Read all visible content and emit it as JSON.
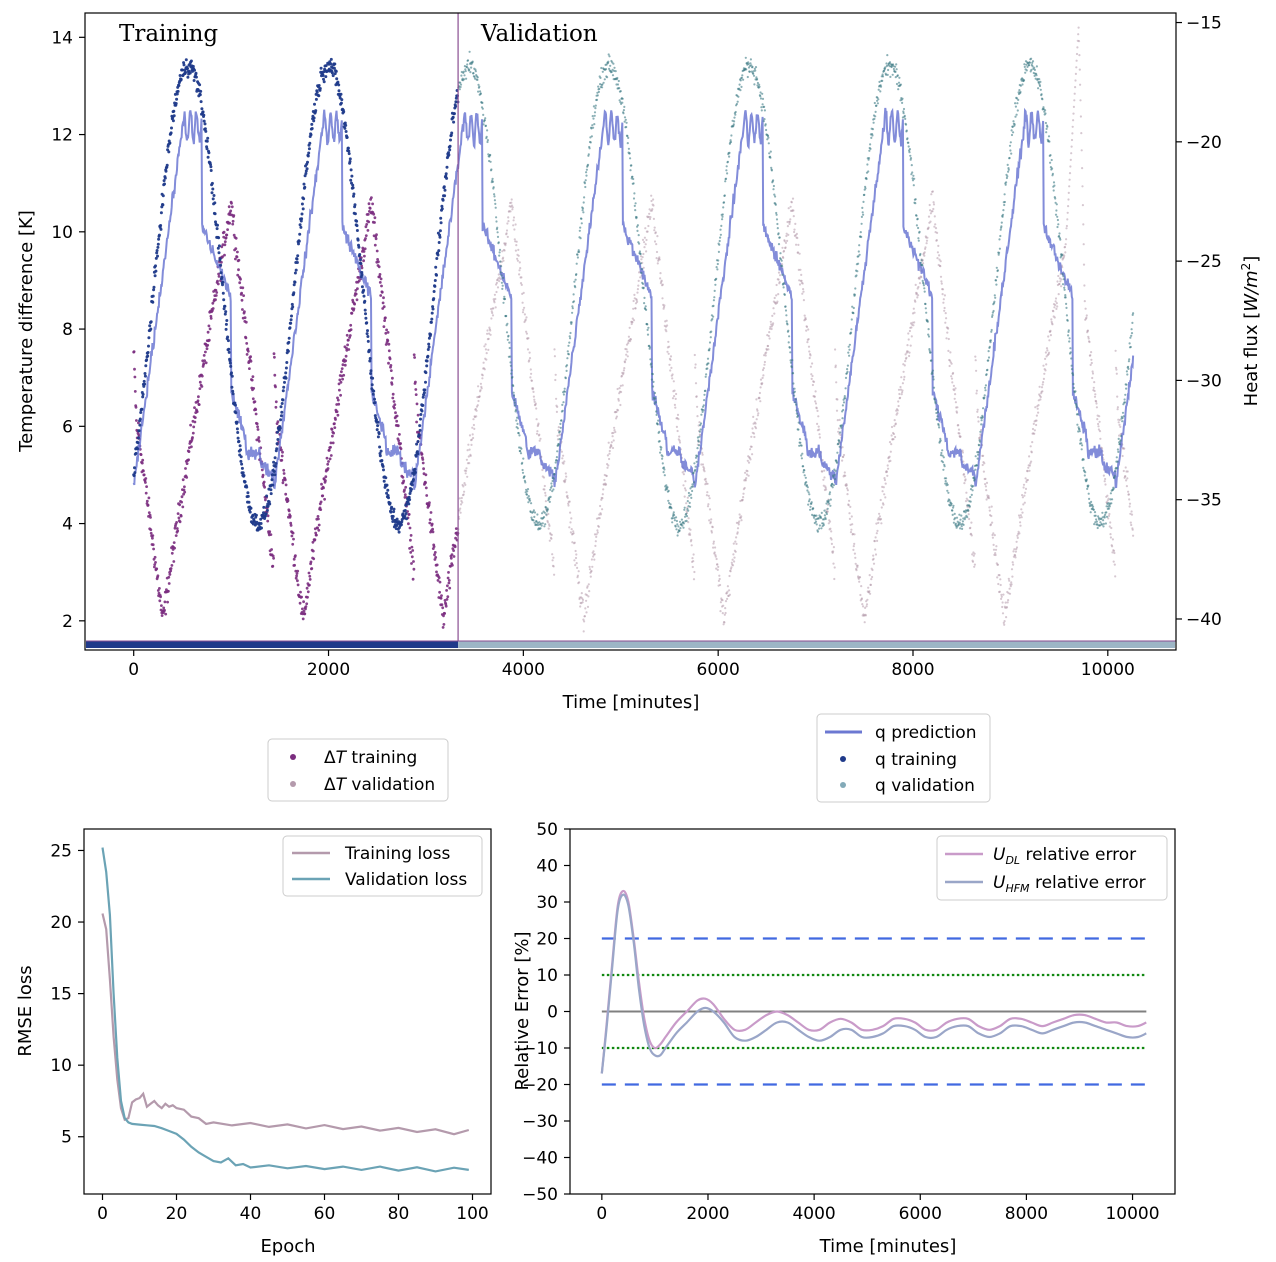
{
  "chart_data": [
    {
      "type": "scatter",
      "id": "top",
      "xlabel": "Time [minutes]",
      "ylabel": "Temperature difference [K]",
      "ylabel_right": "Heat flux [",
      "ylabel_right_unit": "W/m",
      "ylabel_right_sup": "2",
      "ylabel_right_close": "]",
      "xlim": [
        -500,
        10700
      ],
      "ylim": [
        1.4,
        14.5
      ],
      "ylim_right": [
        -41.3,
        -14.6
      ],
      "xticks": [
        0,
        2000,
        4000,
        6000,
        8000,
        10000
      ],
      "xtick_labels": [
        "0",
        "2000",
        "4000",
        "6000",
        "8000",
        "10000"
      ],
      "yticks": [
        2,
        4,
        6,
        8,
        10,
        12,
        14
      ],
      "ytick_labels": [
        "2",
        "4",
        "6",
        "8",
        "10",
        "12",
        "14"
      ],
      "yticks_right": [
        -40,
        -35,
        -30,
        -25,
        -20,
        -15
      ],
      "ytick_labels_right": [
        "−40",
        "−35",
        "−30",
        "−25",
        "−20",
        "−15"
      ],
      "split_x": 3330,
      "region_labels": [
        "Training",
        "Validation"
      ],
      "temperature_series": {
        "period": 1440,
        "phase_of_peak": 1000,
        "min": 2.0,
        "max": 10.6,
        "start": 0,
        "end": 10260,
        "late_peak": {
          "x": 9700,
          "y": 14.2
        }
      },
      "heat_flux_series": {
        "period": 1440,
        "peak_x": 560,
        "min": -36.0,
        "max": -16.8,
        "start": 0,
        "end": 10260
      },
      "prediction_series": {
        "high": -19.4,
        "low": -34.5,
        "drop_at_phase": 700
      },
      "legend1": {
        "entries": [
          {
            "label": "Δ",
            "italic": "T",
            "rest": " training",
            "color": "#7b2d7f"
          },
          {
            "label": "Δ",
            "italic": "T",
            "rest": " validation",
            "color": "#b49aac"
          }
        ]
      },
      "legend2": {
        "entries": [
          {
            "label": "q prediction",
            "color": "#6c78d2",
            "marker": "line"
          },
          {
            "label": "q training",
            "color": "#1f3a8a",
            "marker": "dot"
          },
          {
            "label": "q validation",
            "color": "#83aab8",
            "marker": "dot"
          }
        ]
      },
      "colors": {
        "dt_train": "#7b2d7f",
        "dt_val": "#b49aac",
        "q_pred": "#6c78d2",
        "q_train": "#1f3a8a",
        "q_val": "#3d7b85",
        "bar_train": "#1f3a8a",
        "bar_val": "#9db6c6",
        "split_line": "#8a4d91"
      }
    },
    {
      "type": "line",
      "id": "loss",
      "xlabel": "Epoch",
      "ylabel": "RMSE loss",
      "xlim": [
        -5,
        105
      ],
      "ylim": [
        1.0,
        26.5
      ],
      "xticks": [
        0,
        20,
        40,
        60,
        80,
        100
      ],
      "xtick_labels": [
        "0",
        "20",
        "40",
        "60",
        "80",
        "100"
      ],
      "yticks": [
        5,
        10,
        15,
        20,
        25
      ],
      "ytick_labels": [
        "5",
        "10",
        "15",
        "20",
        "25"
      ],
      "series": [
        {
          "name": "Training loss",
          "color": "#b49aac",
          "x": [
            0,
            1,
            2,
            3,
            4,
            5,
            6,
            7,
            8,
            9,
            10,
            11,
            12,
            13,
            14,
            15,
            16,
            17,
            18,
            19,
            20,
            22,
            24,
            26,
            28,
            30,
            35,
            40,
            45,
            50,
            55,
            60,
            65,
            70,
            75,
            80,
            85,
            90,
            95,
            99
          ],
          "values": [
            20.6,
            19.5,
            16.0,
            12.0,
            9.0,
            7.0,
            6.2,
            6.3,
            7.4,
            7.6,
            7.7,
            8.0,
            7.1,
            7.3,
            7.5,
            7.2,
            7.0,
            7.3,
            7.1,
            7.2,
            7.0,
            6.8,
            6.5,
            6.2,
            6.0,
            5.9,
            5.9,
            5.85,
            5.8,
            5.75,
            5.7,
            5.7,
            5.65,
            5.6,
            5.55,
            5.5,
            5.45,
            5.4,
            5.3,
            5.35
          ]
        },
        {
          "name": "Validation loss",
          "color": "#6ba3b5",
          "x": [
            0,
            1,
            2,
            3,
            4,
            5,
            6,
            7,
            8,
            10,
            12,
            14,
            16,
            18,
            20,
            22,
            24,
            26,
            28,
            30,
            32,
            34,
            36,
            38,
            40,
            45,
            50,
            55,
            60,
            65,
            70,
            75,
            80,
            85,
            90,
            95,
            99
          ],
          "values": [
            25.2,
            23.5,
            20.5,
            15.0,
            10.5,
            7.5,
            6.3,
            6.0,
            5.9,
            5.85,
            5.8,
            5.75,
            5.6,
            5.4,
            5.2,
            4.8,
            4.3,
            3.9,
            3.6,
            3.3,
            3.2,
            3.4,
            3.1,
            3.0,
            2.95,
            2.9,
            2.9,
            2.85,
            2.85,
            2.8,
            2.8,
            2.8,
            2.75,
            2.75,
            2.7,
            2.72,
            2.8
          ]
        }
      ]
    },
    {
      "type": "line",
      "id": "relerr",
      "xlabel": "Time [minutes]",
      "ylabel": "Relative Error [%]",
      "xlim": [
        -600,
        10800
      ],
      "ylim": [
        -50,
        50
      ],
      "xticks": [
        0,
        2000,
        4000,
        6000,
        8000,
        10000
      ],
      "xtick_labels": [
        "0",
        "2000",
        "4000",
        "6000",
        "8000",
        "10000"
      ],
      "yticks": [
        -50,
        -40,
        -30,
        -20,
        -10,
        0,
        10,
        20,
        30,
        40,
        50
      ],
      "ytick_labels": [
        "−50",
        "−40",
        "−30",
        "−20",
        "−10",
        "0",
        "10",
        "20",
        "30",
        "40",
        "50"
      ],
      "reference_lines": [
        {
          "y": 20,
          "style": "dashed",
          "color": "#4169e1"
        },
        {
          "y": -20,
          "style": "dashed",
          "color": "#4169e1"
        },
        {
          "y": 10,
          "style": "dotted",
          "color": "#118811"
        },
        {
          "y": -10,
          "style": "dotted",
          "color": "#118811"
        },
        {
          "y": 0,
          "style": "solid",
          "color": "#808080"
        }
      ],
      "series": [
        {
          "name_main": "U",
          "name_sub": "DL",
          "name_rest": " relative error",
          "color": "#c99bc9",
          "x": [
            0,
            100,
            200,
            300,
            400,
            500,
            600,
            700,
            800,
            900,
            1000,
            1100,
            1200,
            1400,
            1600,
            1800,
            1950,
            2100,
            2300,
            2500,
            2700,
            2900,
            3100,
            3300,
            3500,
            3700,
            3900,
            4100,
            4300,
            4500,
            4700,
            4900,
            5100,
            5300,
            5500,
            5700,
            5900,
            6100,
            6300,
            6500,
            6700,
            6900,
            7100,
            7300,
            7500,
            7700,
            7900,
            8100,
            8300,
            8500,
            8700,
            8900,
            9100,
            9300,
            9500,
            9700,
            9900,
            10100,
            10260
          ],
          "values": [
            -17,
            -2,
            14,
            29,
            33,
            30,
            20,
            8,
            -2,
            -8,
            -10,
            -9,
            -7,
            -3,
            0,
            3,
            3.5,
            2,
            -2,
            -5,
            -5,
            -3,
            -1,
            0,
            -1,
            -3,
            -5,
            -5,
            -3,
            -2,
            -3,
            -5,
            -5,
            -4,
            -2,
            -2,
            -3,
            -5,
            -5,
            -3,
            -2,
            -2,
            -4,
            -5,
            -4,
            -2,
            -2,
            -3,
            -4,
            -3,
            -2,
            -1,
            -1,
            -2,
            -3,
            -3,
            -4,
            -4,
            -3
          ]
        },
        {
          "name_main": "U",
          "name_sub": "HFM",
          "name_rest": " relative error",
          "color": "#9aa6c8",
          "x": [
            0,
            100,
            200,
            300,
            400,
            500,
            600,
            700,
            800,
            900,
            1000,
            1100,
            1200,
            1400,
            1600,
            1800,
            1950,
            2100,
            2300,
            2500,
            2700,
            2900,
            3100,
            3300,
            3500,
            3700,
            3900,
            4100,
            4300,
            4500,
            4700,
            4900,
            5100,
            5300,
            5500,
            5700,
            5900,
            6100,
            6300,
            6500,
            6700,
            6900,
            7100,
            7300,
            7500,
            7700,
            7900,
            8100,
            8300,
            8500,
            8700,
            8900,
            9100,
            9300,
            9500,
            9700,
            9900,
            10100,
            10260
          ],
          "values": [
            -17,
            -3,
            13,
            28,
            32,
            29,
            19,
            6,
            -4,
            -10,
            -12,
            -12,
            -10,
            -6,
            -3,
            0,
            1,
            0,
            -3,
            -7,
            -8,
            -7,
            -5,
            -3,
            -3,
            -5,
            -7,
            -8,
            -7,
            -5,
            -5,
            -7,
            -7,
            -6,
            -4,
            -4,
            -5,
            -7,
            -7,
            -5,
            -4,
            -4,
            -6,
            -7,
            -6,
            -4,
            -4,
            -5,
            -6,
            -5,
            -4,
            -3,
            -3,
            -4,
            -5,
            -6,
            -7,
            -7,
            -6
          ]
        }
      ]
    }
  ]
}
